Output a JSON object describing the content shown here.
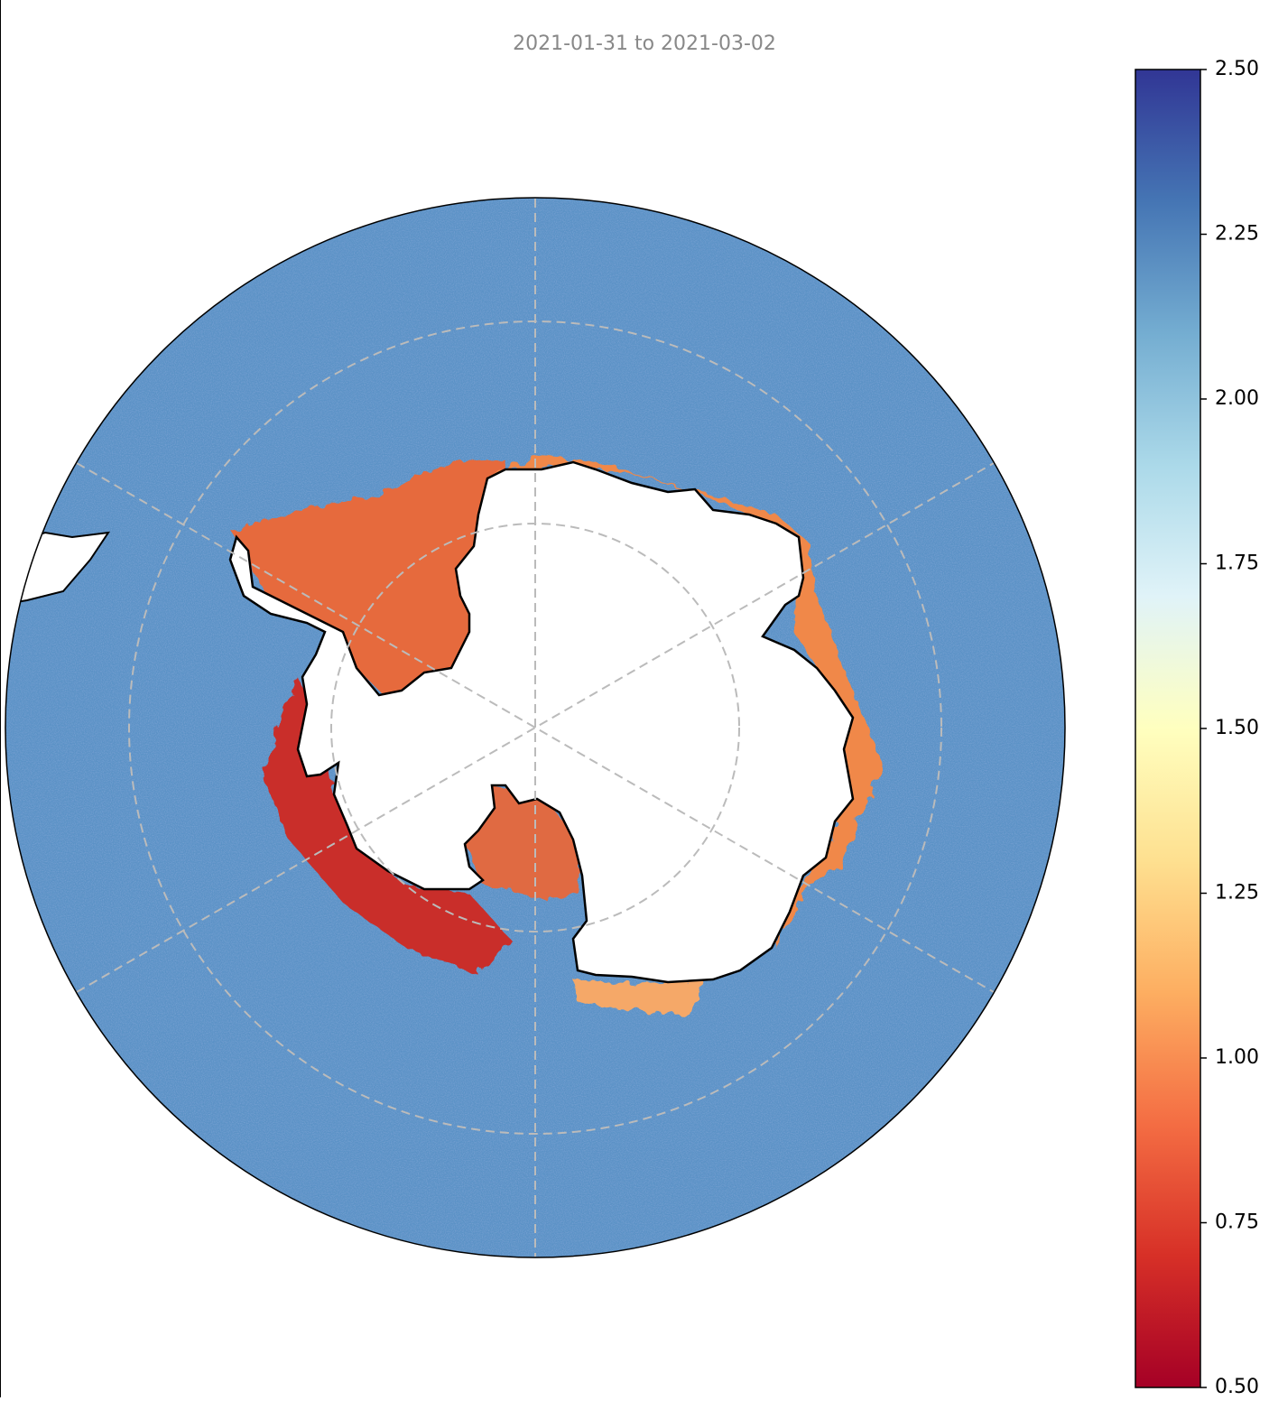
{
  "chart_data": {
    "type": "map",
    "title": "2021-01-31 to 2021-03-02",
    "colorbar": {
      "lim": [
        0.5,
        2.5
      ],
      "ticks": [
        {
          "value": 0.5,
          "label": "0.50"
        },
        {
          "value": 0.75,
          "label": "0.75"
        },
        {
          "value": 1.0,
          "label": "1.00"
        },
        {
          "value": 1.25,
          "label": "1.25"
        },
        {
          "value": 1.5,
          "label": "1.50"
        },
        {
          "value": 1.75,
          "label": "1.75"
        },
        {
          "value": 2.0,
          "label": "2.00"
        },
        {
          "value": 2.25,
          "label": "2.25"
        },
        {
          "value": 2.5,
          "label": "2.50"
        }
      ],
      "colormap": [
        "#a50026",
        "#d73027",
        "#f46d43",
        "#fdae61",
        "#fee090",
        "#ffffbf",
        "#e0f3f8",
        "#abd9e9",
        "#74add1",
        "#4575b4",
        "#313695"
      ]
    }
  }
}
